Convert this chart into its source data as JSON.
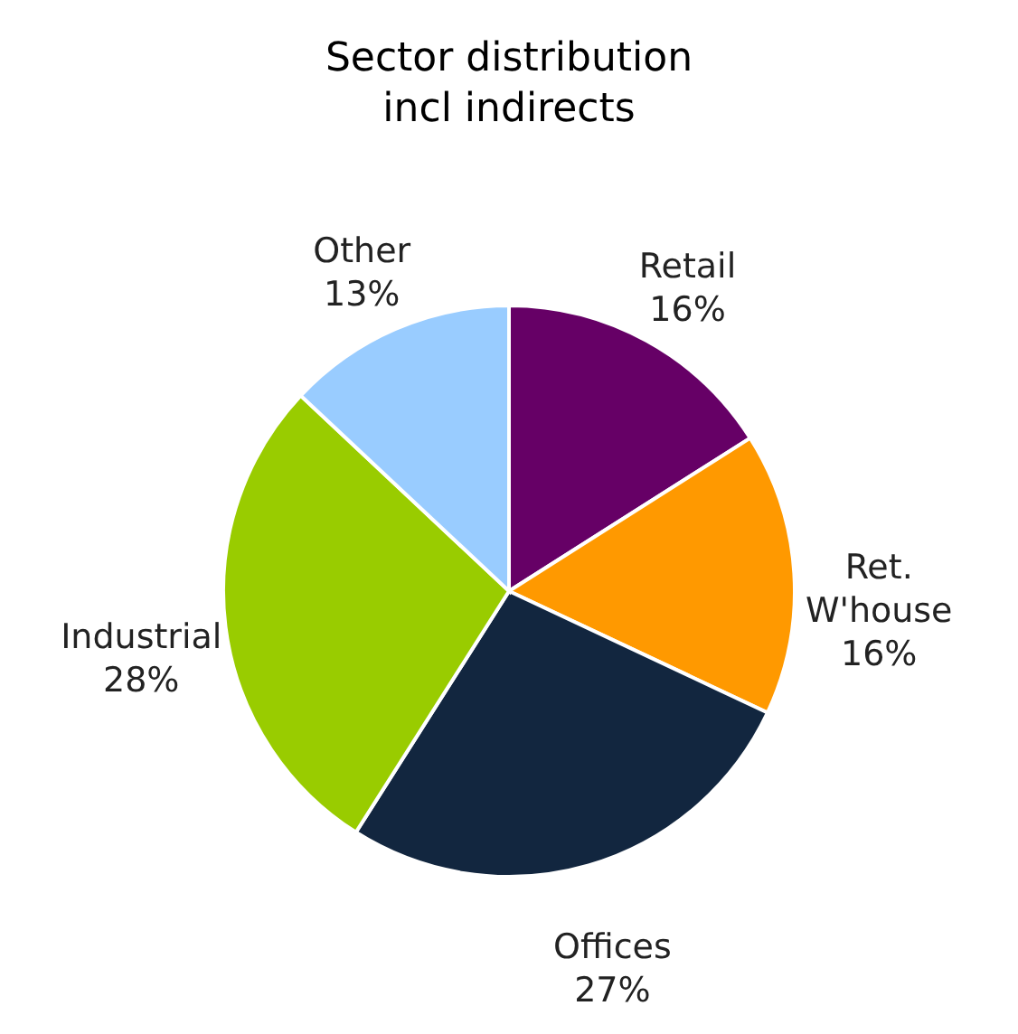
{
  "chart_data": {
    "type": "pie",
    "title": "Sector distribution incl indirects",
    "categories": [
      "Retail",
      "Ret. W'house",
      "Offices",
      "Industrial",
      "Other"
    ],
    "values": [
      16,
      16,
      27,
      28,
      13
    ],
    "colors": [
      "#660066",
      "#ff9900",
      "#12263f",
      "#99cc00",
      "#99ccff"
    ],
    "value_labels": [
      "16%",
      "16%",
      "27%",
      "28%",
      "13%"
    ]
  }
}
